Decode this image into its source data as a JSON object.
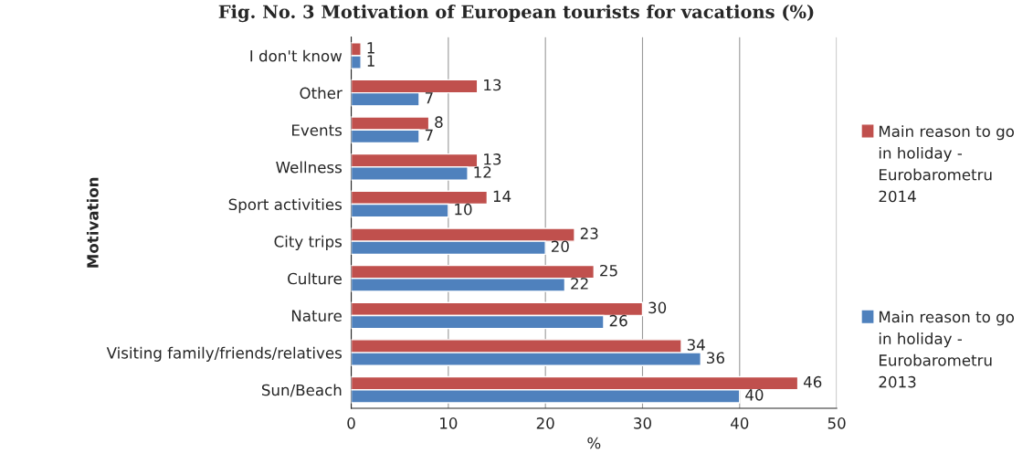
{
  "chart_data": {
    "type": "bar",
    "orientation": "horizontal",
    "title": "Fig. No. 3 Motivation of European tourists for vacations (%)",
    "xlabel": "%",
    "ylabel": "Motivation",
    "categories": [
      "I don't know",
      "Other",
      "Events",
      "Wellness",
      "Sport activities",
      "City trips",
      "Culture",
      "Nature",
      "Visiting family/friends/relatives",
      "Sun/Beach"
    ],
    "series": [
      {
        "name": "Main reason to go in holiday - Eurobarometru 2014",
        "color": "#c0504d",
        "values": [
          1,
          13,
          8,
          13,
          14,
          23,
          25,
          30,
          34,
          46
        ]
      },
      {
        "name": "Main reason to go in holiday - Eurobarometru 2013",
        "color": "#4f81bd",
        "values": [
          1,
          7,
          7,
          12,
          10,
          20,
          22,
          26,
          36,
          40
        ]
      }
    ],
    "xlim": [
      0,
      50
    ],
    "xticks": [
      0,
      10,
      20,
      30,
      40,
      50
    ],
    "grid": "x",
    "legend": "right",
    "data_labels": true
  }
}
